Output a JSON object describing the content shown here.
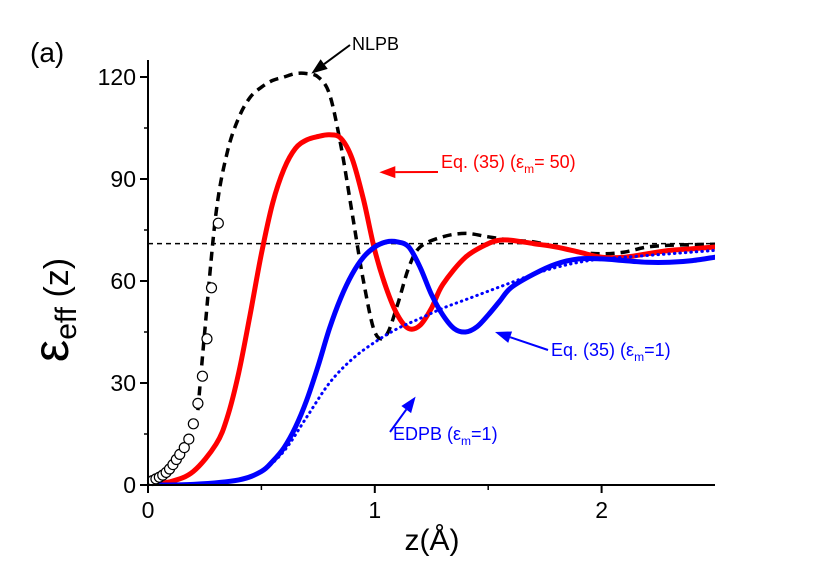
{
  "chart_data": {
    "type": "line",
    "panel_label": "(a)",
    "xlabel": "z(Å)",
    "ylabel": {
      "symbol": "ε",
      "subscript": "eff",
      "suffix": " (z)"
    },
    "xlim": [
      0,
      2.5
    ],
    "ylim": [
      0,
      125
    ],
    "x_ticks": [
      0,
      1,
      2
    ],
    "y_ticks": [
      0,
      30,
      60,
      90,
      120
    ],
    "reference_line": {
      "y": 71,
      "style": "dashed"
    },
    "series": [
      {
        "name": "NLPB",
        "color": "#000000",
        "style": "dashed",
        "x": [
          0.22,
          0.25,
          0.3,
          0.35,
          0.4,
          0.45,
          0.5,
          0.55,
          0.6,
          0.65,
          0.7,
          0.75,
          0.8,
          0.85,
          0.9,
          0.95,
          1.0,
          1.05,
          1.1,
          1.15,
          1.2,
          1.3,
          1.4,
          1.5,
          1.6,
          1.7,
          1.8,
          1.9,
          2.0,
          2.1,
          2.2,
          2.3,
          2.4,
          2.5
        ],
        "y": [
          22,
          45,
          80,
          98,
          108,
          114,
          117,
          119,
          120,
          121,
          121,
          120,
          115,
          100,
          80,
          60,
          45,
          44,
          53,
          64,
          70,
          73,
          74,
          73,
          72,
          71.5,
          70,
          68.5,
          68,
          68.5,
          70,
          70.5,
          70.7,
          70.8
        ]
      },
      {
        "name": "Eq. (35) (ε_m= 50)",
        "color": "#ff0000",
        "style": "solid",
        "x": [
          0.0,
          0.1,
          0.2,
          0.3,
          0.35,
          0.4,
          0.45,
          0.5,
          0.55,
          0.6,
          0.65,
          0.7,
          0.75,
          0.8,
          0.85,
          0.9,
          0.95,
          1.0,
          1.05,
          1.1,
          1.15,
          1.2,
          1.25,
          1.3,
          1.4,
          1.5,
          1.55,
          1.6,
          1.7,
          1.8,
          1.9,
          2.0,
          2.1,
          2.2,
          2.3,
          2.4,
          2.5
        ],
        "y": [
          0.3,
          1,
          4,
          12,
          20,
          33,
          50,
          68,
          83,
          93,
          99,
          101.5,
          102.5,
          103,
          102,
          96,
          84,
          69,
          58,
          50,
          46,
          47,
          52,
          59,
          67,
          71,
          72,
          72,
          71,
          70,
          68.5,
          67,
          67,
          68,
          69,
          69.5,
          70
        ]
      },
      {
        "name": "Eq. (35) (ε_m=1)",
        "color": "#0000ff",
        "style": "solid",
        "x": [
          0.0,
          0.2,
          0.4,
          0.5,
          0.55,
          0.6,
          0.65,
          0.7,
          0.75,
          0.8,
          0.85,
          0.9,
          0.95,
          1.0,
          1.05,
          1.1,
          1.15,
          1.2,
          1.25,
          1.3,
          1.35,
          1.4,
          1.45,
          1.5,
          1.55,
          1.6,
          1.7,
          1.8,
          1.9,
          2.0,
          2.1,
          2.2,
          2.3,
          2.4,
          2.5
        ],
        "y": [
          0,
          0.2,
          1.5,
          4,
          7,
          11,
          17,
          25,
          35,
          46,
          55,
          62,
          67,
          70,
          71.5,
          71.5,
          70,
          64,
          56,
          50,
          46,
          45,
          46.5,
          50,
          54,
          58,
          62,
          65,
          66.5,
          66.5,
          66,
          65.5,
          65.5,
          66,
          67
        ]
      },
      {
        "name": "EDPB (ε_m=1)",
        "color": "#0000ff",
        "style": "dotted",
        "x": [
          0.0,
          0.2,
          0.4,
          0.5,
          0.6,
          0.7,
          0.8,
          0.9,
          1.0,
          1.1,
          1.2,
          1.3,
          1.4,
          1.5,
          1.6,
          1.7,
          1.8,
          1.9,
          2.0,
          2.1,
          2.2,
          2.3,
          2.4,
          2.5
        ],
        "y": [
          0,
          0.2,
          1.5,
          4,
          10,
          20,
          30,
          37,
          42,
          46,
          49,
          52,
          54.5,
          57,
          59.5,
          62,
          64,
          65.5,
          66.5,
          67,
          67.5,
          68,
          68.5,
          69
        ]
      },
      {
        "name": "",
        "color": "#000000",
        "style": "markers",
        "x": [
          0.02,
          0.035,
          0.05,
          0.065,
          0.08,
          0.095,
          0.11,
          0.125,
          0.14,
          0.16,
          0.18,
          0.2,
          0.22,
          0.24,
          0.26,
          0.28,
          0.31
        ],
        "y": [
          1.3,
          1.8,
          2.3,
          2.9,
          3.7,
          4.7,
          6,
          7.5,
          9,
          11,
          13.5,
          18,
          24,
          32,
          43,
          58,
          77
        ]
      }
    ],
    "annotations": [
      {
        "text": "NLPB",
        "color": "#000000",
        "arrow_to": [
          0.72,
          121
        ]
      },
      {
        "text_main": "Eq. (35)  (ε",
        "sub": "m",
        "text_end": "= 50)",
        "color": "#ff0000",
        "arrow_to": [
          1.02,
          92
        ]
      },
      {
        "text_main": "Eq. (35) (ε",
        "sub": "m",
        "text_end": "=1)",
        "color": "#0000ff",
        "arrow_to": [
          1.53,
          45
        ]
      },
      {
        "text_main": "EDPB  (ε",
        "sub": "m",
        "text_end": "=1)",
        "color": "#0000ff",
        "arrow_to": [
          1.18,
          26
        ]
      }
    ]
  }
}
